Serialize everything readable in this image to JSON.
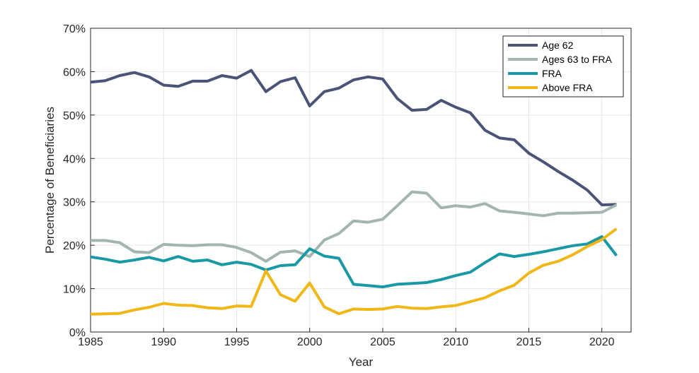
{
  "chart_data": {
    "type": "line",
    "xlabel": "Year",
    "ylabel": "Percentage of Beneficiaries",
    "xlim": [
      1985,
      2022
    ],
    "ylim": [
      0,
      70
    ],
    "x_ticks": [
      1985,
      1990,
      1995,
      2000,
      2005,
      2010,
      2015,
      2020
    ],
    "x_tick_labels": [
      "1985",
      "1990",
      "1995",
      "2000",
      "2005",
      "2010",
      "2015",
      "2020"
    ],
    "y_ticks": [
      0,
      10,
      20,
      30,
      40,
      50,
      60,
      70
    ],
    "y_tick_labels": [
      "0%",
      "10%",
      "20%",
      "30%",
      "40%",
      "50%",
      "60%",
      "70%"
    ],
    "grid": true,
    "legend_position": "top-right",
    "x": [
      1985,
      1986,
      1987,
      1988,
      1989,
      1990,
      1991,
      1992,
      1993,
      1994,
      1995,
      1996,
      1997,
      1998,
      1999,
      2000,
      2001,
      2002,
      2003,
      2004,
      2005,
      2006,
      2007,
      2008,
      2009,
      2010,
      2011,
      2012,
      2013,
      2014,
      2015,
      2016,
      2017,
      2018,
      2019,
      2020,
      2021
    ],
    "series": [
      {
        "name": "Age 62",
        "color": "#4b5478",
        "values": [
          57.6,
          57.9,
          59.1,
          59.8,
          58.8,
          56.9,
          56.6,
          57.8,
          57.8,
          59.1,
          58.5,
          60.3,
          55.4,
          57.7,
          58.6,
          52.1,
          55.4,
          56.2,
          58.1,
          58.8,
          58.3,
          53.8,
          51.1,
          51.3,
          53.4,
          51.8,
          50.5,
          46.5,
          44.7,
          44.3,
          41.2,
          39.2,
          37.0,
          35.0,
          32.7,
          29.3,
          29.4
        ]
      },
      {
        "name": "Ages 63 to FRA",
        "color": "#a3b5b1",
        "values": [
          21.1,
          21.1,
          20.6,
          18.5,
          18.3,
          20.2,
          20.0,
          19.9,
          20.1,
          20.1,
          19.5,
          18.3,
          16.3,
          18.4,
          18.7,
          17.4,
          21.2,
          22.7,
          25.6,
          25.3,
          26.0,
          29.1,
          32.3,
          32.0,
          28.6,
          29.1,
          28.8,
          29.6,
          27.9,
          27.6,
          27.2,
          26.8,
          27.4,
          27.4,
          27.5,
          27.6,
          29.3
        ]
      },
      {
        "name": "FRA",
        "color": "#1899a5",
        "values": [
          17.3,
          16.8,
          16.1,
          16.6,
          17.2,
          16.4,
          17.4,
          16.3,
          16.6,
          15.5,
          16.1,
          15.6,
          14.3,
          15.3,
          15.5,
          19.2,
          17.5,
          17.0,
          11.0,
          10.7,
          10.4,
          11.0,
          11.2,
          11.4,
          12.1,
          13.0,
          13.8,
          16.0,
          18.0,
          17.4,
          17.9,
          18.5,
          19.2,
          19.9,
          20.3,
          22.0,
          17.6
        ]
      },
      {
        "name": "Above FRA",
        "color": "#f0b717",
        "values": [
          4.1,
          4.2,
          4.3,
          5.1,
          5.7,
          6.6,
          6.2,
          6.1,
          5.6,
          5.4,
          6.0,
          5.9,
          14.1,
          8.6,
          7.1,
          11.3,
          5.8,
          4.2,
          5.3,
          5.2,
          5.3,
          5.9,
          5.5,
          5.4,
          5.8,
          6.1,
          7.0,
          7.9,
          9.5,
          10.8,
          13.6,
          15.4,
          16.3,
          17.8,
          19.7,
          21.3,
          23.8
        ]
      }
    ]
  }
}
